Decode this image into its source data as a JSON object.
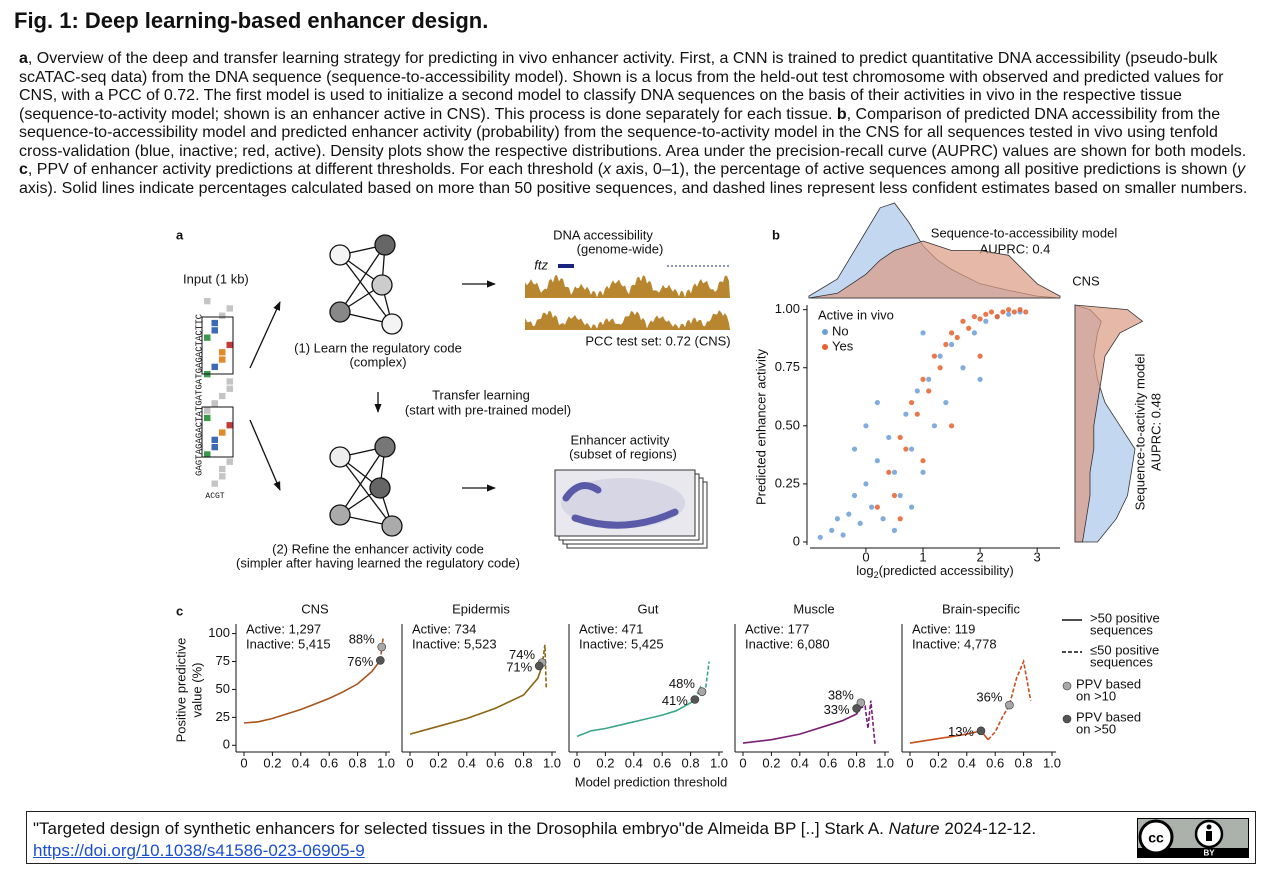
{
  "header": {
    "title": "Fig. 1: Deep learning-based enhancer design."
  },
  "caption": [
    {
      "text": "a",
      "style": "bold"
    },
    {
      "text": ", Overview of the deep and transfer learning strategy for predicting in vivo enhancer activity. First, a CNN is trained to predict quantitative DNA accessibility (pseudo-bulk scATAC-seq data) from the DNA sequence (sequence-to-accessibility model). Shown is a locus from the held-out test chromosome with observed and predicted values for CNS, with a PCC of 0.72. The first model is used to initialize a second model to classify DNA sequences on the basis of their activities in vivo in the respective tissue (sequence-to-activity model; shown is an enhancer active in CNS). This process is done separately for each tissue. "
    },
    {
      "text": "b",
      "style": "bold"
    },
    {
      "text": ", Comparison of predicted DNA accessibility from the sequence-to-accessibility model and predicted enhancer activity (probability) from the sequence-to-activity model in the CNS for all sequences tested in vivo using tenfold cross-validation (blue, inactive; red, active). Density plots show the respective distributions. Area under the precision-recall curve (AUPRC) values are shown for both models. "
    },
    {
      "text": "c",
      "style": "bold"
    },
    {
      "text": ", PPV of enhancer activity predictions at different thresholds. For each threshold ("
    },
    {
      "text": "x",
      "style": "italic"
    },
    {
      "text": " axis, 0–1), the percentage of active sequences among all positive predictions is shown ("
    },
    {
      "text": "y",
      "style": "italic"
    },
    {
      "text": " axis). Solid lines indicate percentages calculated based on more than 50 positive sequences, and dashed lines represent less confident estimates based on smaller numbers."
    }
  ],
  "panel_a": {
    "letter": "a",
    "input_label": "Input (1 kb)",
    "sequence": "GAGTAGAGACTATGATGATGAGACTACTTC",
    "alphabet": "ACGT",
    "step1": [
      "(1) Learn the regulatory code",
      "(complex)"
    ],
    "accessibility": [
      "DNA accessibility",
      "(genome-wide)"
    ],
    "gene": "ftz",
    "pcc": "PCC test set: 0.72 (CNS)",
    "transfer": [
      "Transfer learning",
      "(start with pre-trained model)"
    ],
    "activity": [
      "Enhancer activity",
      "(subset of regions)"
    ],
    "step2": [
      "(2) Refine the enhancer activity code",
      "(simpler after having learned the regulatory code)"
    ]
  },
  "panel_b": {
    "letter": "b",
    "top_label": [
      "Sequence-to-accessibility model",
      "AUPRC: 0.4"
    ],
    "tissue": "CNS",
    "right_label": [
      "Sequence-to-activity model",
      "AUPRC: 0.48"
    ],
    "ylabel": "Predicted enhancer activity",
    "xlabel": [
      "log",
      "2",
      "(predicted accessibility)"
    ],
    "legend_title": "Active in vivo",
    "xlim": [
      -0.98,
      3.4
    ],
    "ylim": [
      -0.013,
      1.02
    ],
    "xticks": [
      0,
      1,
      2,
      3
    ],
    "yticks": [
      0,
      0.25,
      {
        "value": 0.5,
        "label": "0.50"
      },
      0.75,
      {
        "value": 1,
        "label": "1.00"
      }
    ],
    "series": [
      {
        "name": "No",
        "color": "#6a9fd8",
        "x": [
          -0.8,
          -0.6,
          -0.5,
          -0.4,
          -0.3,
          -0.2,
          -0.1,
          0,
          0.1,
          0.2,
          0.3,
          0.4,
          0.5,
          0.6,
          0.7,
          0.8,
          0.9,
          1.0,
          1.1,
          1.2,
          1.3,
          1.5,
          1.7,
          1.9,
          2.1,
          2.3,
          2.5,
          2.7,
          0.2,
          0.5,
          0.8,
          1.4,
          -0.2,
          0.0,
          1.0,
          2.0
        ],
        "values": [
          0.02,
          0.05,
          0.1,
          0.03,
          0.12,
          0.2,
          0.08,
          0.25,
          0.15,
          0.35,
          0.1,
          0.45,
          0.3,
          0.2,
          0.55,
          0.4,
          0.65,
          0.3,
          0.7,
          0.5,
          0.8,
          0.85,
          0.75,
          0.9,
          0.95,
          0.97,
          0.98,
          0.99,
          0.6,
          0.05,
          0.15,
          0.6,
          0.4,
          0.5,
          0.9,
          0.7
        ]
      },
      {
        "name": "Yes",
        "color": "#e8602c",
        "x": [
          0.2,
          0.4,
          0.5,
          0.6,
          0.7,
          0.8,
          0.9,
          1.0,
          1.1,
          1.2,
          1.3,
          1.4,
          1.5,
          1.6,
          1.7,
          1.8,
          1.9,
          2.0,
          2.1,
          2.2,
          2.3,
          2.4,
          2.5,
          2.6,
          2.7,
          2.8,
          0.6,
          1.0,
          1.5,
          2.0
        ],
        "values": [
          0.15,
          0.3,
          0.2,
          0.45,
          0.4,
          0.6,
          0.55,
          0.7,
          0.65,
          0.8,
          0.75,
          0.85,
          0.9,
          0.88,
          0.95,
          0.92,
          0.97,
          0.96,
          0.98,
          0.99,
          0.97,
          0.99,
          1.0,
          0.99,
          1.0,
          0.99,
          0.1,
          0.35,
          0.5,
          0.8
        ]
      }
    ],
    "density_top": {
      "x": [
        -1,
        -0.5,
        0,
        0.25,
        0.5,
        0.75,
        1,
        1.25,
        1.5,
        2,
        2.5,
        3,
        3.4
      ],
      "series": [
        {
          "color": "#a9c8ea",
          "values": [
            0.02,
            0.2,
            0.7,
            0.95,
            1.0,
            0.8,
            0.55,
            0.4,
            0.3,
            0.15,
            0.08,
            0.02,
            0
          ]
        },
        {
          "color": "#dc9a82",
          "values": [
            0,
            0.05,
            0.25,
            0.4,
            0.5,
            0.55,
            0.6,
            0.55,
            0.5,
            0.5,
            0.45,
            0.15,
            0.02
          ]
        }
      ]
    },
    "density_right": {
      "y": [
        0,
        0.1,
        0.2,
        0.3,
        0.4,
        0.5,
        0.6,
        0.7,
        0.8,
        0.9,
        0.95,
        1.0,
        1.02
      ],
      "series": [
        {
          "color": "#a9c8ea",
          "values": [
            0.3,
            0.55,
            0.7,
            0.75,
            0.8,
            0.6,
            0.4,
            0.3,
            0.25,
            0.3,
            0.35,
            0.2,
            0
          ]
        },
        {
          "color": "#dc9a82",
          "values": [
            0.1,
            0.15,
            0.2,
            0.2,
            0.25,
            0.25,
            0.3,
            0.35,
            0.4,
            0.6,
            0.9,
            0.7,
            0
          ]
        }
      ]
    }
  },
  "panel_c": {
    "letter": "c",
    "ylabel": [
      "Positive predictive",
      "value (%)"
    ],
    "xlabel": "Model prediction threshold",
    "xlim": [
      0,
      1
    ],
    "ylim": [
      -6,
      105
    ],
    "xticks": [
      0,
      0.2,
      0.4,
      0.6,
      0.8,
      {
        "value": 1,
        "label": "1.0"
      }
    ],
    "yticks": [
      0,
      25,
      50,
      75,
      100
    ],
    "point_colors": {
      "gt10": "#a8a8a8",
      "gt50": "#555555"
    },
    "legend": {
      "solid": [
        ">50 positive",
        "sequences"
      ],
      "dashed": [
        "≤50 positive",
        "sequences"
      ],
      "gt10": [
        "PPV based",
        "on >10"
      ],
      "gt50": [
        "PPV based",
        "on >50"
      ]
    },
    "panels": [
      {
        "title": "CNS",
        "active": "Active: 1,297",
        "inactive": "Inactive: 5,415",
        "color": "#a8541c",
        "solid": {
          "x": [
            0,
            0.1,
            0.2,
            0.3,
            0.4,
            0.5,
            0.6,
            0.7,
            0.8,
            0.9,
            0.96
          ],
          "values": [
            20,
            21,
            24,
            28,
            32,
            37,
            42,
            48,
            55,
            66,
            76
          ]
        },
        "dashed": {
          "x": [
            0.96,
            0.98
          ],
          "values": [
            76,
            97
          ]
        },
        "gt10": {
          "x": 0.97,
          "value": 88,
          "label": "88%"
        },
        "gt50": {
          "x": 0.96,
          "value": 76,
          "label": "76%"
        }
      },
      {
        "title": "Epidermis",
        "active": "Active: 734",
        "inactive": "Inactive: 5,523",
        "color": "#8c6512",
        "solid": {
          "x": [
            0,
            0.2,
            0.4,
            0.6,
            0.8,
            0.9,
            0.93
          ],
          "values": [
            10,
            17,
            24,
            33,
            45,
            60,
            71
          ]
        },
        "dashed": {
          "x": [
            0.93,
            0.95,
            0.96
          ],
          "values": [
            71,
            90,
            50
          ]
        },
        "gt10": {
          "x": 0.93,
          "value": 74,
          "label": "74%"
        },
        "gt50": {
          "x": 0.91,
          "value": 71,
          "label": "71%"
        }
      },
      {
        "title": "Gut",
        "active": "Active: 471",
        "inactive": "Inactive: 5,425",
        "color": "#3aa888",
        "solid": {
          "x": [
            0,
            0.1,
            0.2,
            0.3,
            0.4,
            0.5,
            0.6,
            0.7,
            0.8,
            0.83
          ],
          "values": [
            8,
            13,
            15,
            18,
            21,
            24,
            27,
            31,
            38,
            41
          ]
        },
        "dashed": {
          "x": [
            0.83,
            0.87,
            0.9,
            0.93
          ],
          "values": [
            41,
            52,
            45,
            75
          ]
        },
        "gt10": {
          "x": 0.88,
          "value": 48,
          "label": "48%"
        },
        "gt50": {
          "x": 0.83,
          "value": 41,
          "label": "41%"
        }
      },
      {
        "title": "Muscle",
        "active": "Active: 177",
        "inactive": "Inactive: 6,080",
        "color": "#7a1f7a",
        "solid": {
          "x": [
            0,
            0.2,
            0.4,
            0.6,
            0.7,
            0.8,
            0.82
          ],
          "values": [
            2,
            5,
            10,
            18,
            22,
            28,
            33
          ]
        },
        "dashed": {
          "x": [
            0.82,
            0.86,
            0.88,
            0.9,
            0.93
          ],
          "values": [
            33,
            35,
            15,
            40,
            0
          ]
        },
        "gt10": {
          "x": 0.83,
          "value": 38,
          "label": "38%"
        },
        "gt50": {
          "x": 0.8,
          "value": 33,
          "label": "33%"
        }
      },
      {
        "title": "Brain-specific",
        "active": "Active: 119",
        "inactive": "Inactive: 4,778",
        "color": "#c8501e",
        "solid": {
          "x": [
            0,
            0.1,
            0.2,
            0.3,
            0.4,
            0.5,
            0.55
          ],
          "values": [
            2,
            4,
            6,
            8,
            10,
            13,
            5
          ]
        },
        "dashed": {
          "x": [
            0.55,
            0.6,
            0.65,
            0.7,
            0.75,
            0.8,
            0.85
          ],
          "values": [
            5,
            12,
            25,
            36,
            60,
            75,
            40
          ]
        },
        "gt10": {
          "x": 0.7,
          "value": 36,
          "label": "36%"
        },
        "gt50": {
          "x": 0.5,
          "value": 13,
          "label": "13%"
        }
      }
    ]
  },
  "footer": {
    "citation": [
      {
        "text": "\"Targeted design of synthetic enhancers for selected tissues in the Drosophila embryo\"de Almeida BP [..] Stark A. "
      },
      {
        "text": "Nature",
        "style": "italic"
      },
      {
        "text": " 2024-12-12."
      }
    ],
    "link": "https://doi.org/10.1038/s41586-023-06905-9",
    "license": "BY"
  }
}
